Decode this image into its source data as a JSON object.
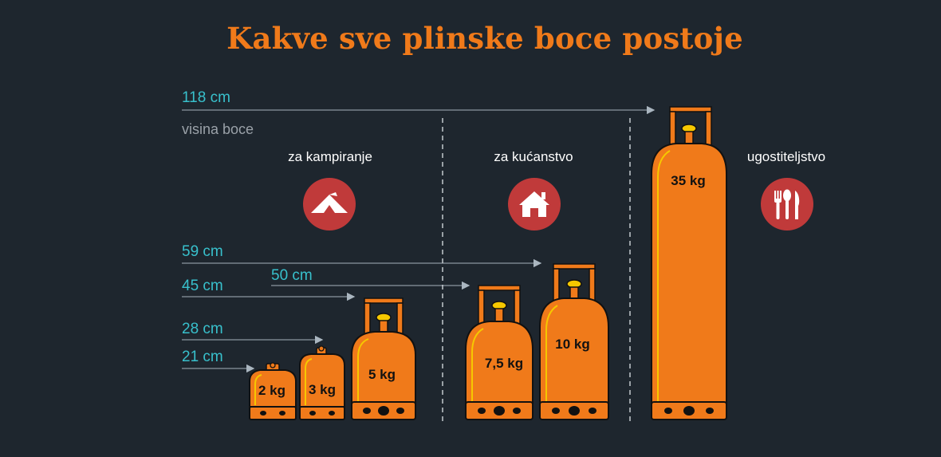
{
  "title": "Kakve sve plinske boce postoje",
  "subtitle": "visina boce",
  "heights": {
    "h118": "118 cm",
    "h59": "59 cm",
    "h50": "50 cm",
    "h45": "45 cm",
    "h28": "28 cm",
    "h21": "21 cm"
  },
  "categories": {
    "camping": "za kampiranje",
    "household": "za kućanstvo",
    "catering": "ugostiteljstvo"
  },
  "icons": {
    "camping": "tent-icon",
    "household": "house-icon",
    "catering": "cutlery-icon"
  },
  "cylinders": {
    "c2": "2 kg",
    "c3": "3 kg",
    "c5": "5 kg",
    "c75": "7,5 kg",
    "c10": "10 kg",
    "c35": "35 kg"
  },
  "colors": {
    "background": "#1e262e",
    "title": "#f07a1a",
    "height_labels": "#38c0cc",
    "cylinder_body": "#f07a1a",
    "cylinder_valve": "#f6c800",
    "icon_circle": "#c03a3a"
  }
}
